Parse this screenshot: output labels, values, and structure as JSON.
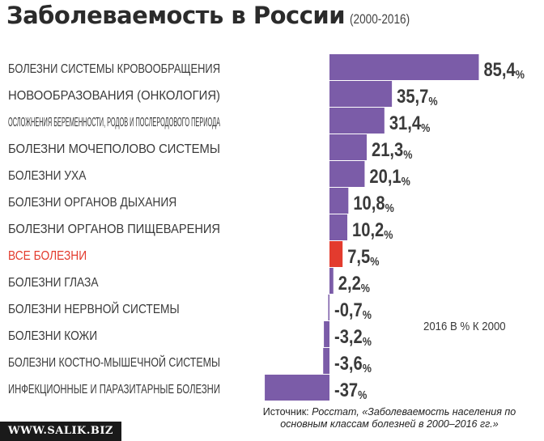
{
  "title": "Заболеваемость в России",
  "years": "(2000-2016)",
  "source_label": "Источник:",
  "source_text": "Росстат, «Заболеваемость населения по основным классам болезней в 2000–2016 гг.»",
  "watermark": "WWW.SALIK.BIZ",
  "colors": {
    "bar": "#7b5ca8",
    "highlight": "#e33b2e",
    "label": "#3a3a3a",
    "highlight_label": "#e33b2e"
  },
  "chart_data": {
    "type": "bar",
    "orientation": "horizontal",
    "unit_note": "2016 В % К 2000",
    "categories": [
      "БОЛЕЗНИ СИСТЕМЫ КРОВООБРАЩЕНИЯ",
      "НОВООБРАЗОВАНИЯ (ОНКОЛОГИЯ)",
      "ОСЛОЖНЕНИЯ БЕРЕМЕННОСТИ, РОДОВ И ПОСЛЕРОДОВОГО ПЕРИОДА",
      "БОЛЕЗНИ МОЧЕПОЛОВО СИСТЕМЫ",
      "БОЛЕЗНИ УХА",
      "БОЛЕЗНИ ОРГАНОВ ДЫХАНИЯ",
      "БОЛЕЗНИ ОРГАНОВ ПИЩЕВАРЕНИЯ",
      "ВСЕ БОЛЕЗНИ",
      "БОЛЕЗНИ ГЛАЗА",
      "БОЛЕЗНИ НЕРВНОЙ СИСТЕМЫ",
      "БОЛЕЗНИ КОЖИ",
      "БОЛЕЗНИ КОСТНО-МЫШЕЧНОЙ СИСТЕМЫ",
      "ИНФЕКЦИОННЫЕ И ПАРАЗИТАРНЫЕ БОЛЕЗНИ"
    ],
    "values": [
      85.4,
      35.7,
      31.4,
      21.3,
      20.1,
      10.8,
      10.2,
      7.5,
      2.2,
      -0.7,
      -3.2,
      -3.6,
      -37
    ],
    "value_labels": [
      "85,4",
      "35,7",
      "31,4",
      "21,3",
      "20,1",
      "10,8",
      "10,2",
      "7,5",
      "2,2",
      "-0,7",
      "-3,2",
      "-3,6",
      "-37"
    ],
    "percent_sign": "%",
    "highlight_index": 7
  }
}
